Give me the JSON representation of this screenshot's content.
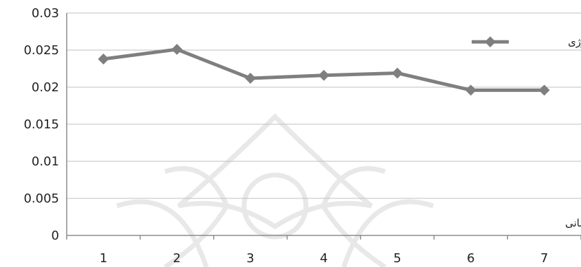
{
  "chart_data": {
    "type": "line",
    "categories": [
      "1",
      "2",
      "3",
      "4",
      "5",
      "6",
      "7"
    ],
    "series": [
      {
        "name": "شدت انرژی",
        "values": [
          0.0238,
          0.0251,
          0.0212,
          0.0216,
          0.0219,
          0.0196,
          0.0196
        ]
      }
    ],
    "y_ticks": [
      "0",
      "0.005",
      "0.01",
      "0.015",
      "0.02",
      "0.025",
      "0.03"
    ],
    "ylim": [
      0,
      0.03
    ],
    "xlabel": "دوره زمانی",
    "ylabel": "",
    "grid": true,
    "legend_position": "top-right",
    "colors": {
      "series": "#7f7f7f",
      "grid": "#bfbfbf",
      "axis": "#8c8c8c",
      "watermark": "#e8e8e8"
    }
  }
}
